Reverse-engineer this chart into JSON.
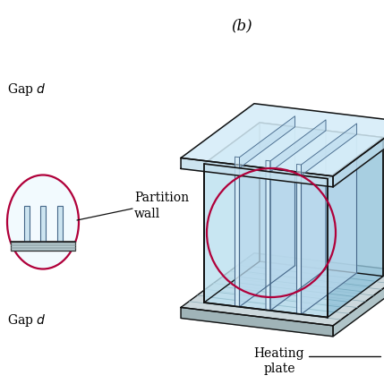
{
  "title_b": "(b)",
  "label_gap_top": "Gap $d$",
  "label_gap_bottom": "Gap $d$",
  "label_partition": "Partition\nwall",
  "label_heating": "Heating\nplate",
  "bg_color": "#ffffff",
  "crimson_circle_color": "#b0003a",
  "crimson_circle_lw": 1.6,
  "box_edge_color": "#111111",
  "glass_blue_light": "#c8e8f4",
  "glass_blue_mid": "#a8d4e8",
  "glass_blue_dark": "#88bcd4",
  "glass_front_alpha": 0.65,
  "partition_front": "#d8eef8",
  "partition_side": "#b8d8ec",
  "partition_ec": "#446688",
  "heating_top": "#c0d8e0",
  "heating_front": "#a8c4cc",
  "heating_side": "#90b0b8",
  "tray_top": "#ccd8dc",
  "tray_front": "#a0b4b8",
  "tray_side": "#b0c4c8",
  "inner_floor": "#a8d4ec",
  "font_size_labels": 10,
  "font_size_title": 12
}
